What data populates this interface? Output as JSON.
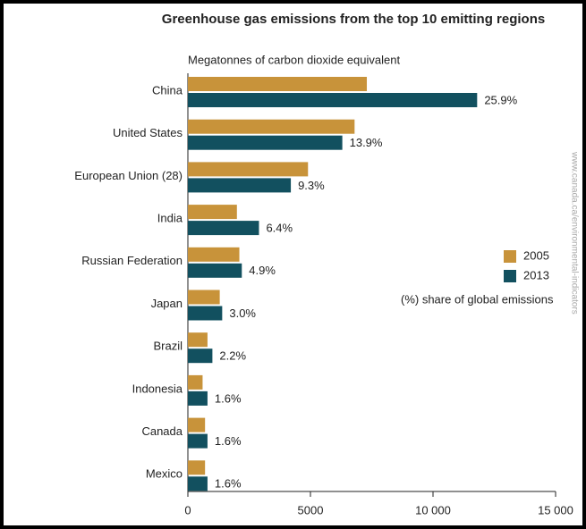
{
  "chart_data": {
    "type": "barh",
    "title": "Greenhouse gas emissions from the top 10 emitting regions",
    "subtitle": "Megatonnes of carbon dioxide equivalent",
    "categories": [
      "China",
      "United States",
      "European Union (28)",
      "India",
      "Russian Federation",
      "Japan",
      "Brazil",
      "Indonesia",
      "Canada",
      "Mexico"
    ],
    "series": [
      {
        "name": "2005",
        "color": "#c8933a",
        "values": [
          7300,
          6800,
          4900,
          2000,
          2100,
          1300,
          800,
          600,
          700,
          700
        ]
      },
      {
        "name": "2013",
        "color": "#12505f",
        "values": [
          11800,
          6300,
          4200,
          2900,
          2200,
          1400,
          1000,
          800,
          800,
          800
        ],
        "share_labels": [
          "25.9%",
          "13.9%",
          "9.3%",
          "6.4%",
          "4.9%",
          "3.0%",
          "2.2%",
          "1.6%",
          "1.6%",
          "1.6%"
        ]
      }
    ],
    "share_note": "(%) share of global emissions",
    "source": "www.canada.ca/environmental-indicators",
    "xlim": [
      0,
      15000
    ],
    "xticks": [
      0,
      5000,
      {
        "value": 10000,
        "label": "10 000"
      },
      {
        "value": 15000,
        "label": "15 000"
      }
    ]
  }
}
